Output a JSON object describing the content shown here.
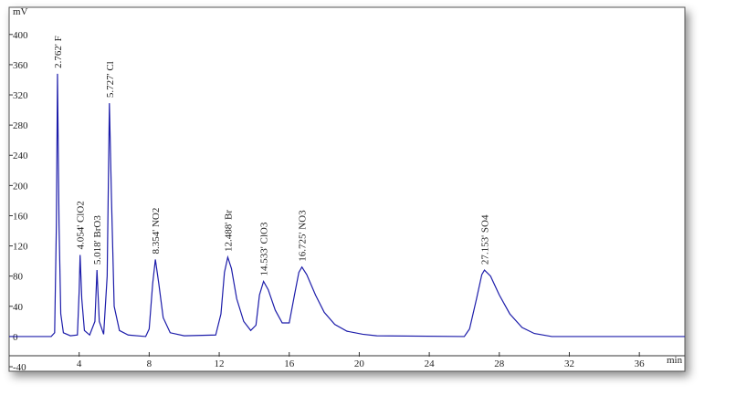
{
  "chart_data": {
    "type": "line",
    "y_unit": "mV",
    "x_unit": "min",
    "xlim": [
      0,
      38.6
    ],
    "ylim": [
      -46,
      436
    ],
    "xticks": [
      4,
      8,
      12,
      16,
      20,
      24,
      28,
      32,
      36
    ],
    "yticks": [
      -40,
      0,
      40,
      80,
      120,
      160,
      200,
      240,
      280,
      320,
      360,
      400
    ],
    "series": [
      {
        "color": "#1c1caa",
        "x": [
          0,
          2.4,
          2.6,
          2.7,
          2.762,
          2.85,
          2.95,
          3.1,
          3.5,
          3.9,
          4.0,
          4.054,
          4.15,
          4.3,
          4.6,
          4.9,
          5.018,
          5.15,
          5.4,
          5.6,
          5.727,
          5.85,
          6.0,
          6.3,
          6.8,
          7.8,
          8.0,
          8.2,
          8.354,
          8.55,
          8.8,
          9.2,
          10,
          11.8,
          12.1,
          12.3,
          12.488,
          12.7,
          13.0,
          13.4,
          13.8,
          14.1,
          14.3,
          14.533,
          14.8,
          15.2,
          15.6,
          16.0,
          16.3,
          16.55,
          16.725,
          17.0,
          17.5,
          18.0,
          18.6,
          19.3,
          20.2,
          21,
          26,
          26.3,
          26.7,
          27.0,
          27.153,
          27.5,
          28.0,
          28.6,
          29.3,
          30.0,
          31,
          38.6
        ],
        "values": [
          0,
          0,
          5,
          150,
          348,
          150,
          30,
          5,
          1,
          2,
          60,
          108,
          50,
          8,
          2,
          20,
          88,
          20,
          3,
          80,
          309,
          180,
          40,
          8,
          2,
          0,
          10,
          70,
          102,
          70,
          25,
          5,
          1,
          2,
          30,
          85,
          105,
          90,
          50,
          20,
          8,
          15,
          55,
          73,
          62,
          35,
          18,
          18,
          55,
          85,
          92,
          82,
          55,
          32,
          16,
          7,
          3,
          1,
          0,
          10,
          50,
          82,
          88,
          80,
          55,
          30,
          12,
          4,
          0,
          0
        ]
      }
    ],
    "annotations": [
      {
        "text": "2.762' F",
        "x": 2.762,
        "y": 348
      },
      {
        "text": "4.054' ClO2",
        "x": 4.054,
        "y": 108
      },
      {
        "text": "5.018' BrO3",
        "x": 5.018,
        "y": 88
      },
      {
        "text": "5.727' Cl",
        "x": 5.727,
        "y": 309
      },
      {
        "text": "8.354' NO2",
        "x": 8.354,
        "y": 102
      },
      {
        "text": "12.488' Br",
        "x": 12.488,
        "y": 105
      },
      {
        "text": "14.533' ClO3",
        "x": 14.533,
        "y": 73
      },
      {
        "text": "16.725' NO3",
        "x": 16.725,
        "y": 92
      },
      {
        "text": "27.153' SO4",
        "x": 27.153,
        "y": 88
      }
    ]
  }
}
